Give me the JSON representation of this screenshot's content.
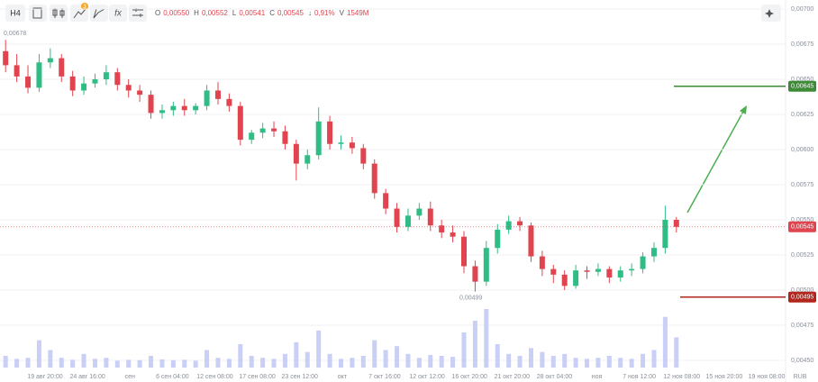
{
  "toolbar": {
    "timeframe": "H4",
    "badge": "3",
    "ohlc": [
      {
        "key": "O",
        "value": "0,00550"
      },
      {
        "key": "H",
        "value": "0,00552"
      },
      {
        "key": "L",
        "value": "0,00541"
      },
      {
        "key": "C",
        "value": "0,00545"
      },
      {
        "key": "↓",
        "value": "0,91%"
      },
      {
        "key": "V",
        "value": "1549M"
      }
    ]
  },
  "chart_data": {
    "type": "candlestick",
    "open": [
      0.0067,
      0.0066,
      0.00652,
      0.00644,
      0.00662,
      0.00665,
      0.00652,
      0.00642,
      0.00647,
      0.0065,
      0.00655,
      0.00646,
      0.00642,
      0.00639,
      0.00626,
      0.00628,
      0.00631,
      0.00628,
      0.00631,
      0.00642,
      0.00636,
      0.00631,
      0.00607,
      0.00612,
      0.00615,
      0.00613,
      0.00604,
      0.0059,
      0.00596,
      0.0062,
      0.00604,
      0.00605,
      0.00601,
      0.0059,
      0.00569,
      0.00558,
      0.00545,
      0.00553,
      0.00558,
      0.00546,
      0.00541,
      0.00538,
      0.00517,
      0.00506,
      0.0053,
      0.00543,
      0.00549,
      0.00546,
      0.00524,
      0.00515,
      0.00511,
      0.00503,
      0.00514,
      0.00513,
      0.00515,
      0.00509,
      0.00514,
      0.00515,
      0.00524,
      0.0053,
      0.0055
    ],
    "high": [
      0.00678,
      0.00668,
      0.0066,
      0.00668,
      0.00672,
      0.00668,
      0.00656,
      0.00652,
      0.00654,
      0.0066,
      0.00658,
      0.0065,
      0.00646,
      0.00642,
      0.00632,
      0.00634,
      0.00636,
      0.00633,
      0.00646,
      0.00648,
      0.0064,
      0.00634,
      0.00614,
      0.00619,
      0.0062,
      0.00617,
      0.00607,
      0.006,
      0.0063,
      0.00624,
      0.0061,
      0.00609,
      0.00604,
      0.00593,
      0.00572,
      0.00562,
      0.00558,
      0.00562,
      0.00563,
      0.0055,
      0.00546,
      0.00542,
      0.00521,
      0.00535,
      0.00547,
      0.00553,
      0.00552,
      0.00548,
      0.00528,
      0.00518,
      0.00514,
      0.00518,
      0.00517,
      0.00519,
      0.00517,
      0.00517,
      0.00519,
      0.00527,
      0.00534,
      0.0056,
      0.00552
    ],
    "low": [
      0.00655,
      0.00648,
      0.0064,
      0.00641,
      0.00658,
      0.00648,
      0.00638,
      0.00639,
      0.00644,
      0.00646,
      0.00642,
      0.00637,
      0.00634,
      0.00622,
      0.00622,
      0.00624,
      0.00624,
      0.00625,
      0.00628,
      0.00632,
      0.00627,
      0.00603,
      0.00604,
      0.00608,
      0.00609,
      0.006,
      0.00578,
      0.00586,
      0.00593,
      0.006,
      0.006,
      0.00597,
      0.00586,
      0.00565,
      0.00554,
      0.00541,
      0.00542,
      0.0055,
      0.00542,
      0.00537,
      0.00534,
      0.00512,
      0.00499,
      0.00503,
      0.00526,
      0.0054,
      0.00542,
      0.0052,
      0.0051,
      0.00505,
      0.005,
      0.00501,
      0.00508,
      0.0051,
      0.00505,
      0.00506,
      0.0051,
      0.00512,
      0.0052,
      0.00526,
      0.00541
    ],
    "close": [
      0.0066,
      0.00652,
      0.00644,
      0.00662,
      0.00665,
      0.00652,
      0.00642,
      0.00647,
      0.0065,
      0.00655,
      0.00646,
      0.00642,
      0.00639,
      0.00626,
      0.00628,
      0.00631,
      0.00628,
      0.00631,
      0.00642,
      0.00636,
      0.00631,
      0.00607,
      0.00612,
      0.00615,
      0.00613,
      0.00604,
      0.0059,
      0.00596,
      0.0062,
      0.00604,
      0.00605,
      0.00601,
      0.0059,
      0.00569,
      0.00558,
      0.00545,
      0.00553,
      0.00558,
      0.00546,
      0.00541,
      0.00538,
      0.00517,
      0.00506,
      0.0053,
      0.00543,
      0.00549,
      0.00546,
      0.00524,
      0.00515,
      0.00511,
      0.00503,
      0.00514,
      0.00513,
      0.00515,
      0.00509,
      0.00514,
      0.00515,
      0.00524,
      0.0053,
      0.0055,
      0.00545
    ],
    "volume": [
      600,
      450,
      500,
      1400,
      900,
      500,
      400,
      700,
      450,
      500,
      350,
      400,
      380,
      600,
      420,
      380,
      400,
      350,
      900,
      500,
      450,
      1200,
      600,
      500,
      450,
      700,
      1300,
      800,
      1900,
      700,
      450,
      500,
      600,
      1400,
      900,
      1100,
      700,
      500,
      650,
      600,
      550,
      1800,
      2400,
      3000,
      1200,
      700,
      600,
      1000,
      800,
      600,
      700,
      500,
      450,
      500,
      600,
      500,
      450,
      700,
      900,
      2600,
      1549
    ],
    "up_color": "#2ebd85",
    "down_color": "#e0454f",
    "volume_color": "#c9cff5",
    "ylim": [
      0.0045,
      0.007
    ],
    "yticks": [
      {
        "value": 0.0045,
        "label": "0,00450"
      },
      {
        "value": 0.00475,
        "label": "0,00475"
      },
      {
        "value": 0.005,
        "label": "0,00500"
      },
      {
        "value": 0.00525,
        "label": "0,00525"
      },
      {
        "value": 0.0055,
        "label": "0,00550"
      },
      {
        "value": 0.00575,
        "label": "0,00575"
      },
      {
        "value": 0.006,
        "label": "0,00600"
      },
      {
        "value": 0.00625,
        "label": "0,00625"
      },
      {
        "value": 0.0065,
        "label": "0,00650"
      },
      {
        "value": 0.00675,
        "label": "0,00675"
      },
      {
        "value": 0.007,
        "label": "0,00700"
      }
    ],
    "xlabels": [
      "19 авг 20:00",
      "24 авг 16:00",
      "сен",
      "6 сен 04:00",
      "12 сен 08:00",
      "17 сен 08:00",
      "23 сен 12:00",
      "окт",
      "7 окт 16:00",
      "12 окт 12:00",
      "16 окт 20:00",
      "21 окт 20:00",
      "28 окт 04:00",
      "ноя",
      "7 ноя 12:00",
      "12 ноя 08:00",
      "15 ноя 20:00",
      "19 ноя 08:00"
    ],
    "grid": true,
    "annotations": [
      {
        "value": 0.00678,
        "label": "0,00678"
      },
      {
        "value": 0.00499,
        "label": "0,00499"
      }
    ],
    "current_price": {
      "value": 0.00545,
      "label": "0,00545",
      "color": "#e0454f"
    },
    "levels": [
      {
        "value": 0.00645,
        "label": "0,00645",
        "color": "#3d8b37"
      },
      {
        "value": 0.00495,
        "label": "0,00495",
        "color": "#b3261e"
      }
    ],
    "currency": "RUB"
  }
}
